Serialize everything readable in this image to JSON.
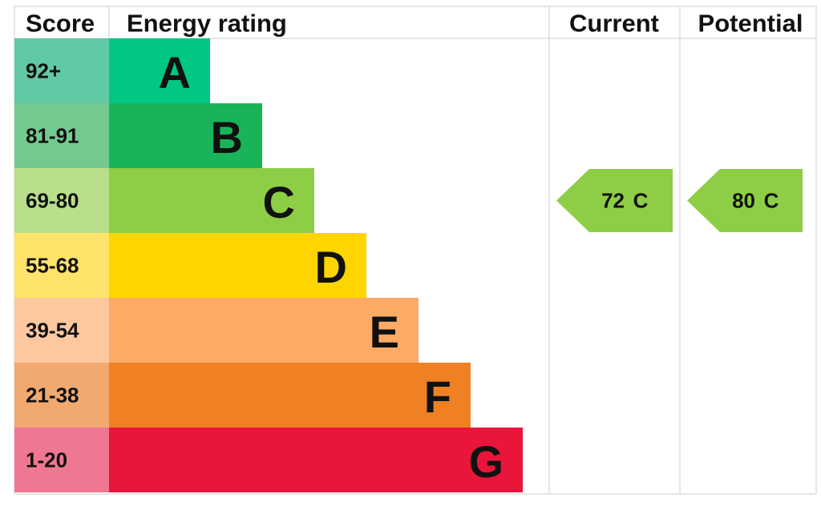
{
  "header": {
    "score": "Score",
    "rating": "Energy rating",
    "current": "Current",
    "potential": "Potential"
  },
  "bands": [
    {
      "score": "92+",
      "letter": "A",
      "color": "#00c781",
      "score_color": "#62c9a5"
    },
    {
      "score": "81-91",
      "letter": "B",
      "color": "#19b459",
      "score_color": "#72ca8f"
    },
    {
      "score": "69-80",
      "letter": "C",
      "color": "#8dce46",
      "score_color": "#b9df8b"
    },
    {
      "score": "55-68",
      "letter": "D",
      "color": "#ffd500",
      "score_color": "#ffe36b"
    },
    {
      "score": "39-54",
      "letter": "E",
      "color": "#fcaa65",
      "score_color": "#fdc8a0"
    },
    {
      "score": "21-38",
      "letter": "F",
      "color": "#ef8023",
      "score_color": "#f2a970"
    },
    {
      "score": "1-20",
      "letter": "G",
      "color": "#e9153b",
      "score_color": "#ef7791"
    }
  ],
  "current": {
    "value": 72,
    "band": "C"
  },
  "potential": {
    "value": 80,
    "band": "C"
  }
}
